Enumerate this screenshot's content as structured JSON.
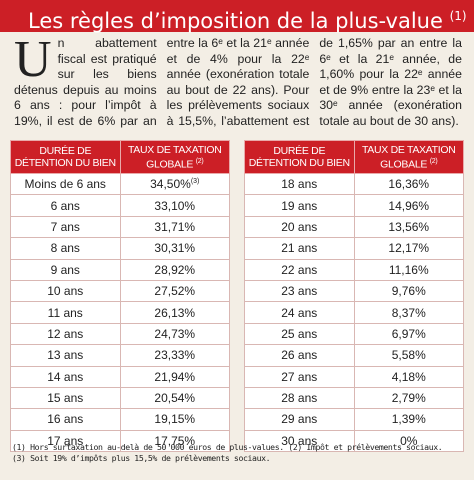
{
  "header": {
    "title": "Les règles d’imposition de la plus-value",
    "title_note": "(1)"
  },
  "intro": {
    "drop_cap": "U",
    "text": "n abattement fiscal est pratiqué sur les biens détenus depuis au moins 6 ans : pour l’impôt à 19%, il est de 6% par an entre la 6ᵉ et la 21ᵉ année et de 4% pour la 22ᵉ année (exonération totale au bout de 22 ans). Pour les prélèvements sociaux à 15,5%, l’abattement est de 1,65% par an entre la 6ᵉ et la 21ᵉ année, de 1,60% pour la 22ᵉ année et de 9% entre la 23ᵉ et la 30ᵉ année (exonération totale au bout de 30 ans)."
  },
  "tables": [
    {
      "headers": [
        "DURÉE DE DÉTENTION DU BIEN",
        "TAUX DE TAXATION GLOBALE"
      ],
      "header_note": "(2)",
      "rows": [
        {
          "duration": "Moins de 6 ans",
          "rate": "34,50%",
          "note": "(3)"
        },
        {
          "duration": "6 ans",
          "rate": "33,10%"
        },
        {
          "duration": "7 ans",
          "rate": "31,71%"
        },
        {
          "duration": "8 ans",
          "rate": "30,31%"
        },
        {
          "duration": "9 ans",
          "rate": "28,92%"
        },
        {
          "duration": "10 ans",
          "rate": "27,52%"
        },
        {
          "duration": "11 ans",
          "rate": "26,13%"
        },
        {
          "duration": "12 ans",
          "rate": "24,73%"
        },
        {
          "duration": "13 ans",
          "rate": "23,33%"
        },
        {
          "duration": "14 ans",
          "rate": "21,94%"
        },
        {
          "duration": "15 ans",
          "rate": "20,54%"
        },
        {
          "duration": "16 ans",
          "rate": "19,15%"
        },
        {
          "duration": "17 ans",
          "rate": "17,75%"
        }
      ]
    },
    {
      "headers": [
        "DURÉE DE DÉTENTION DU BIEN",
        "TAUX DE TAXATION GLOBALE"
      ],
      "header_note": "(2)",
      "rows": [
        {
          "duration": "18 ans",
          "rate": "16,36%"
        },
        {
          "duration": "19 ans",
          "rate": "14,96%"
        },
        {
          "duration": "20 ans",
          "rate": "13,56%"
        },
        {
          "duration": "21 ans",
          "rate": "12,17%"
        },
        {
          "duration": "22 ans",
          "rate": "11,16%"
        },
        {
          "duration": "23 ans",
          "rate": "9,76%"
        },
        {
          "duration": "24 ans",
          "rate": "8,37%"
        },
        {
          "duration": "25 ans",
          "rate": "6,97%"
        },
        {
          "duration": "26 ans",
          "rate": "5,58%"
        },
        {
          "duration": "27 ans",
          "rate": "4,18%"
        },
        {
          "duration": "28 ans",
          "rate": "2,79%"
        },
        {
          "duration": "29 ans",
          "rate": "1,39%"
        },
        {
          "duration": "30 ans",
          "rate": "0%"
        }
      ]
    }
  ],
  "footnotes": [
    "(1) Hors surtaxation au-delà de 50 000 euros de plus-values. (2) Impôt et prélèvements sociaux.",
    "(3) Soit 19% d’impôts plus 15,5% de prélèvements sociaux."
  ]
}
